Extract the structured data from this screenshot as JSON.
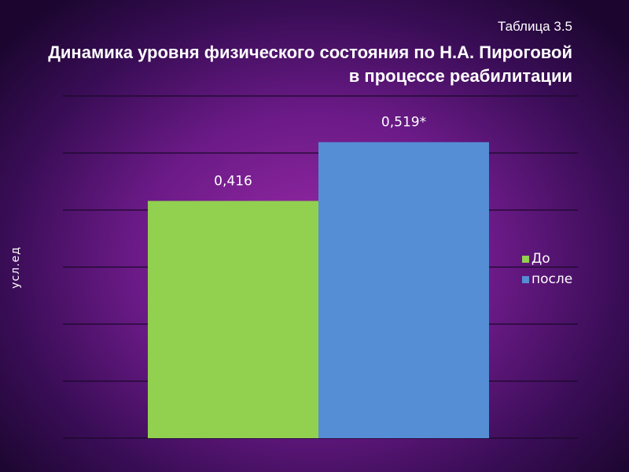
{
  "header": {
    "table_label": "Таблица 3.5",
    "title": "Динамика уровня физического состояния по Н.А. Пироговой в процессе реабилитации"
  },
  "chart_data": {
    "type": "bar",
    "categories": [
      "До",
      "после"
    ],
    "series": [
      {
        "name": "До",
        "values": [
          0.416,
          null
        ],
        "color": "#92d050"
      },
      {
        "name": "после",
        "values": [
          null,
          0.519
        ],
        "color": "#558ed5"
      }
    ],
    "data_labels": [
      "0,416",
      "0,519*"
    ],
    "ylabel": "усл.ед",
    "ylim": [
      0,
      0.6
    ],
    "y_gridlines": [
      0,
      0.1,
      0.2,
      0.3,
      0.4,
      0.5,
      0.6
    ],
    "grid": true,
    "legend_position": "right"
  },
  "legend": {
    "items": [
      "До",
      "после"
    ]
  },
  "colors": {
    "bar_before": "#92d050",
    "bar_after": "#558ed5",
    "gridline": "#1a0828"
  }
}
